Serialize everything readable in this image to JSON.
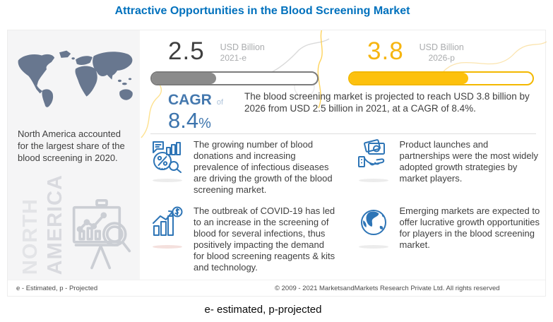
{
  "title": "Attractive Opportunities in the Blood Screening Market",
  "caption": "e- estimated, p-projected",
  "colors": {
    "title_blue": "#0071bd",
    "cagr_blue": "#3c74ad",
    "icon_blue": "#2e75b6",
    "accent_yellow": "#fdc10d",
    "bar_gray": "#8b8b8b",
    "map_slate": "#68778f",
    "panel_bg": "#f5f5f6"
  },
  "left_panel": {
    "text": "North America accounted for the largest share of the blood screening in 2020.",
    "watermark_line1": "NORTH",
    "watermark_line2": "AMERICA",
    "watermark_icon": "market-research-presentation-icon",
    "map_icon": "world-map"
  },
  "stats": [
    {
      "value": "2.5",
      "unit": "USD Billion",
      "period": "2021-e",
      "fill_percent": 39,
      "fill_color": "#8b8b8b"
    },
    {
      "value": "3.8",
      "unit": "USD Billion",
      "period": "2026-p",
      "fill_percent": 65,
      "fill_color": "#fdc10d"
    }
  ],
  "cagr": {
    "label": "CAGR",
    "connector": "of",
    "value": "8.4",
    "unit": "%",
    "summary": "The blood screening market is projected to reach USD 3.8 billion by 2026 from USD 2.5 billion in 2021, at a CAGR of 8.4%."
  },
  "bullets": [
    {
      "icon": "market-analysis-icon",
      "text": "The growing number of blood donations and increasing prevalence of infectious diseases are driving the growth of the blood screening market."
    },
    {
      "icon": "growth-bars-icon",
      "text": "The outbreak of COVID-19 has led to an increase in the screening of blood for several infections, thus positively impacting the demand for blood screening reagents & kits and technology."
    },
    {
      "icon": "hand-money-icon",
      "text": "Product launches and partnerships were the most widely adopted growth strategies by market players."
    },
    {
      "icon": "globe-icon",
      "text": "Emerging markets are expected to offer lucrative growth opportunities for players in the blood screening market."
    }
  ],
  "footer": {
    "left": "e - Estimated, p - Projected",
    "right": "© 2009 - 2021 MarketsandMarkets Research Private Ltd. All rights reserved"
  },
  "chart_data": {
    "type": "bar",
    "categories": [
      "2021-e",
      "2026-p"
    ],
    "values": [
      2.5,
      3.8
    ],
    "series_unit": "USD Billion",
    "title": "Attractive Opportunities in the Blood Screening Market",
    "xlabel": "",
    "ylabel": "USD Billion",
    "annotations": [
      "CAGR of 8.4%",
      "North America accounted for the largest share of the blood screening in 2020."
    ]
  }
}
